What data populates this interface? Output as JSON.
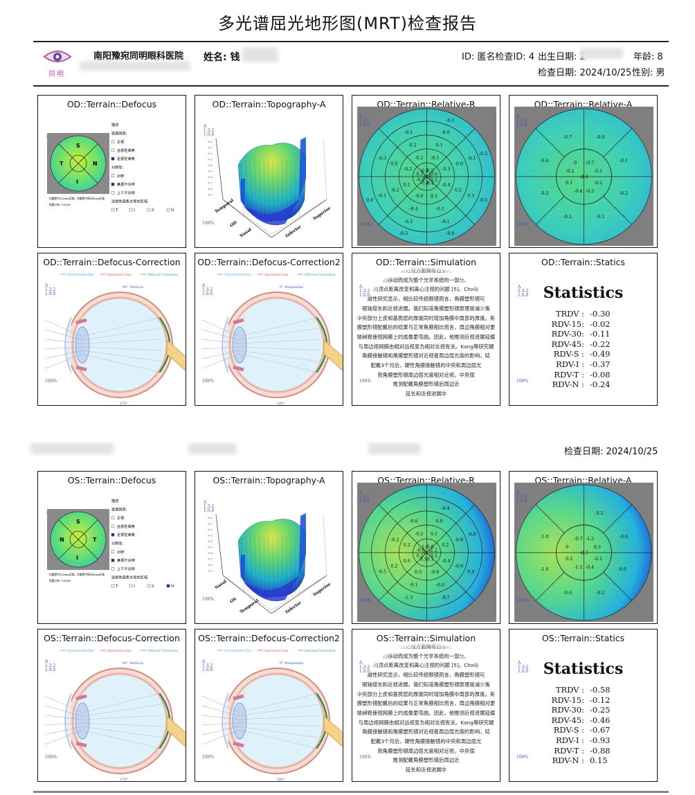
{
  "report_title": "多光谱屈光地形图(MRT)检查报告",
  "header": {
    "logo_text": "同明",
    "hospital": "南阳豫宛同明眼科医院",
    "name_label": "姓名: 钱",
    "id_label": "ID: 匿名检查ID: 4",
    "birth_label": "出生日期: 2",
    "age_label": "年龄: 8",
    "exam_date_label": "检查日期: 2024/10/25",
    "sex_label": "性别: 男"
  },
  "section2_exam_date": "检查日期: 2024/10/25",
  "colors": {
    "accent": "#3d55b8",
    "grey_bg": "#7f7f7f",
    "map_mid": "#4fd3a8"
  },
  "od": {
    "defocus": {
      "title": "OD::Terrain::Defocus",
      "sectors": [
        "S",
        "N",
        "I",
        "T"
      ],
      "legend": [
        "描述",
        "离焦趋势:",
        "正视",
        "远视性离焦",
        "近视性离焦",
        "对称性:",
        "对称",
        "鼻颞不对称",
        "上下不对称",
        "远视性离焦主导的区域:",
        "T",
        "I",
        "S",
        "N"
      ],
      "notes": [
        "内圆是中心3mm区域，外圆是中周边8mm区域",
        "权重分布: T/I/S/N"
      ]
    },
    "topography": {
      "title": "OD::Terrain::Topography-A",
      "axis_labels": [
        "Temporal",
        "OD",
        "Nasal",
        "Inferior",
        "Superior"
      ]
    },
    "relative_r": {
      "title": "OD::Terrain::Relative-R",
      "values": [
        "-0.8",
        "-0.5",
        "-0.6",
        "-0.2",
        "-0.4",
        "-0.3",
        "-0.0",
        "0.3",
        "-0.2",
        "-0.1",
        "-0.3",
        "-0.4",
        "0.1",
        "-0.0",
        "0.1",
        "-0.2",
        "-0.2",
        "0.1",
        "-0.0",
        "0.2",
        "-0.1",
        "-0.4",
        "-0.2",
        "0.0",
        "0.2",
        "-0.0",
        "-0.1",
        "0.1",
        "-0.1",
        "-0.2",
        "-0.1",
        "-0.3",
        "-0.2",
        "-0.1",
        "-0.2",
        "-0.5",
        "-0.6",
        "-0.3",
        "0.0"
      ]
    },
    "relative_a": {
      "title": "OD::Terrain::Relative-A",
      "values": [
        "-0.6",
        "-0.7",
        "-0.1",
        "-0.2",
        "-0.3",
        "-0.4",
        "0.1",
        "-0.2",
        "0",
        "-0.0",
        "-0.1",
        "-0.2",
        "-0.1",
        "-0.1",
        "-0.2",
        "-0.4",
        "-0.7"
      ]
    },
    "defocus_correction": {
      "title": "OD::Terrain::Defocus-Correction",
      "legend": [
        "Uncorrected Eye",
        "Spectacle Lens",
        "Defocus Correction"
      ],
      "angle_top": "90° Vertical",
      "angle_bottom": "270°"
    },
    "defocus_correction2": {
      "title": "OD::Terrain::Defocus-Correction2",
      "legend": [
        "Uncorrected Eye",
        "Spectacle Lens",
        "Defocus Correction"
      ],
      "angle_top": "0° Horizontal",
      "angle_bottom": "180°"
    },
    "simulation": {
      "title": "OD::Terrain::Simulation"
    },
    "statistics": {
      "title": "OD::Terrain::Statics",
      "heading": "Statistics",
      "rows": [
        {
          "k": "TRDV :",
          "v": "-0.30"
        },
        {
          "k": "RDV-15:",
          "v": "-0.02"
        },
        {
          "k": "RDV-30:",
          "v": "-0.11"
        },
        {
          "k": "RDV-45:",
          "v": "-0.22"
        },
        {
          "k": "RDV-S :",
          "v": "-0.49"
        },
        {
          "k": "RDV-I :",
          "v": "-0.37"
        },
        {
          "k": "RDV-T :",
          "v": "-0.08"
        },
        {
          "k": "RDV-N :",
          "v": "-0.24"
        }
      ]
    }
  },
  "os": {
    "defocus": {
      "title": "OS::Terrain::Defocus",
      "sectors": [
        "S",
        "T",
        "I",
        "N"
      ],
      "legend": [
        "描述",
        "离焦趋势:",
        "正视",
        "远视性离焦",
        "近视性离焦",
        "对称性:",
        "对称",
        "鼻颞不对称",
        "上下不对称",
        "远视性离焦主导的区域:",
        "T",
        "I",
        "S",
        "N"
      ],
      "notes": [
        "内圆是中心3mm区域，外圆是中周边8mm区域",
        "权重分布: T/I/S/N"
      ]
    },
    "topography": {
      "title": "OS::Terrain::Topography-A",
      "axis_labels": [
        "Nasal",
        "OS",
        "Temporal",
        "Inferior",
        "Superior"
      ]
    },
    "relative_r": {
      "title": "OS::Terrain::Relative-R",
      "values": [
        "-0.7",
        "-0.6",
        "-1.2",
        "-0.2",
        "-0.1",
        "0.1",
        "0.3",
        "-0.0",
        "-1.1",
        "0.1",
        "0.2",
        "-0.4",
        "-0.6",
        "0.5",
        "0.6",
        "0.2",
        "-0.2",
        "0.8",
        "-0.8",
        "-0.9",
        "-0.0",
        "-0.1",
        "0.2",
        "-0.2",
        "-0.6",
        "-0.4",
        "-0.8",
        "0.4",
        "-0.7",
        "-1.3",
        "-0.5"
      ]
    },
    "relative_a": {
      "title": "OS::Terrain::Relative-A",
      "values": [
        "-0.7",
        "-1.2",
        "0.3",
        "-0.1",
        "-0.4",
        "-1.1",
        "0.2",
        "0",
        "-0.7",
        "0.2",
        "-0.6",
        "0.0",
        "-0.2",
        "-0.6",
        "-1.0",
        "-1.0"
      ]
    },
    "defocus_correction": {
      "title": "OS::Terrain::Defocus-Correction",
      "legend": [
        "Uncorrected Eye",
        "Spectacle Lens",
        "Defocus Correction"
      ],
      "angle_top": "90° Vertical",
      "angle_bottom": "270°"
    },
    "defocus_correction2": {
      "title": "OS::Terrain::Defocus-Correction2",
      "legend": [
        "Uncorrected Eye",
        "Spectacle Lens",
        "Defocus Correction"
      ],
      "angle_top": "0° Horizontal",
      "angle_bottom": "180°"
    },
    "simulation": {
      "title": "OS::Terrain::Simulation"
    },
    "statistics": {
      "title": "OS::Terrain::Statics",
      "heading": "Statistics",
      "rows": [
        {
          "k": "TRDV :",
          "v": "-0.58"
        },
        {
          "k": "RDV-15:",
          "v": "-0.12"
        },
        {
          "k": "RDV-30:",
          "v": "-0.25"
        },
        {
          "k": "RDV-45:",
          "v": "-0.46"
        },
        {
          "k": "RDV-S :",
          "v": "-0.67"
        },
        {
          "k": "RDV-I :",
          "v": "-0.93"
        },
        {
          "k": "RDV-T :",
          "v": "-0.88"
        },
        {
          "k": "RDV-N :",
          "v": "0.15"
        }
      ]
    }
  },
  "scale_label": {
    "a": "A",
    "range": "1.3.2",
    "ver": "1.0.0",
    "pct": "100%"
  },
  "simulation_text": [
    "制近视方面拥有自身的",
    "的移动而成为整个光学系统的一部分。",
    "的顶点距离改变和离心注视的问题 [5]。Cho等",
    "雌性研究显示，相比较传统眼镜而言，角膜塑形镜可",
    "眼轴增长和近视进展。我们知道角膜塑形镜原理是减少角",
    "中央部分上皮和基质层的厚度同时增加角膜中周部的厚度。角",
    "膜塑形镜配戴后的结果与正常角膜相比而言，周边角膜相对更",
    "陡峭致使视网膜上的成像更弯曲。因此，他推测近视进展延缓",
    "与周边视网膜由相对远视变为相对近视有关。Kang等研究硬",
    "角膜接触镜和角膜塑形镜对近视者周边屈光度的影响，结",
    "配戴3个月后，硬性角膜接触镜的中央和周边屈光",
    "而角膜塑形镜周边屈光度相对近视，中央屈",
    "推测配戴角膜塑形镜后周边近",
    "延长和近视进展中"
  ]
}
